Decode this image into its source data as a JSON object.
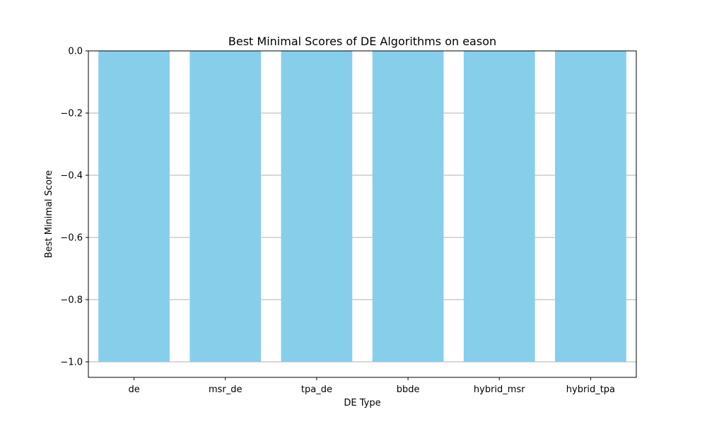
{
  "chart_data": {
    "type": "bar",
    "title": "Best Minimal Scores of DE Algorithms on eason",
    "xlabel": "DE Type",
    "ylabel": "Best Minimal Score",
    "categories": [
      "de",
      "msr_de",
      "tpa_de",
      "bbde",
      "hybrid_msr",
      "hybrid_tpa"
    ],
    "values": [
      -1.0,
      -1.0,
      -1.0,
      -1.0,
      -1.0,
      -1.0
    ],
    "ylim": [
      -1.05,
      0.0
    ],
    "yticks": [
      0.0,
      -0.2,
      -0.4,
      -0.6,
      -0.8,
      -1.0
    ],
    "ytick_labels": [
      "0.0",
      "−0.2",
      "−0.4",
      "−0.6",
      "−0.8",
      "−1.0"
    ],
    "grid": "y-axis",
    "bar_color": "#87CEEB",
    "grid_color": "#b0b0b0"
  }
}
